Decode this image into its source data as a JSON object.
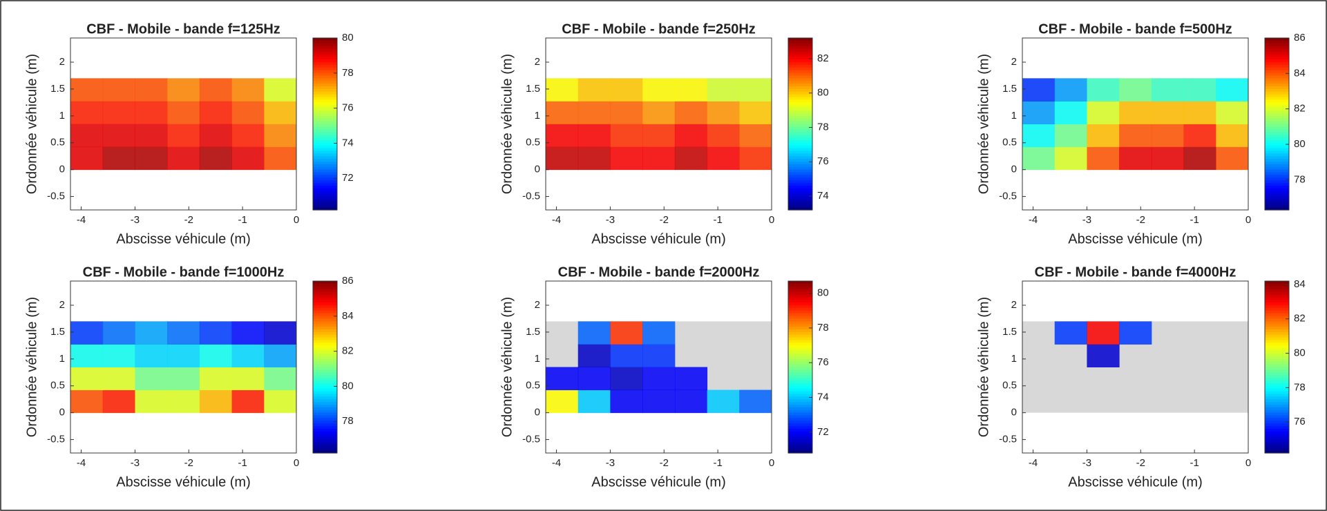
{
  "chart_data": [
    {
      "type": "heatmap",
      "title": "CBF - Mobile - bande f=125Hz",
      "xlabel": "Abscisse véhicule (m)",
      "ylabel": "Ordonnée véhicule (m)",
      "colormap": "jet",
      "x": [
        -3.9,
        -3.3,
        -2.7,
        -2.1,
        -1.5,
        -0.9,
        -0.3
      ],
      "y": [
        0.2125,
        0.6375,
        1.0625,
        1.4875
      ],
      "z": [
        [
          79,
          79.5,
          79.5,
          79,
          79.5,
          79,
          78
        ],
        [
          79,
          79,
          79,
          78.5,
          79,
          78.5,
          77.5
        ],
        [
          78.5,
          78.5,
          78.5,
          78,
          78.5,
          78,
          77
        ],
        [
          78,
          78,
          78,
          77.5,
          78,
          77.5,
          76
        ]
      ],
      "xlim": [
        -4.2,
        0
      ],
      "ylim": [
        -0.75,
        2.45
      ],
      "xticks": [
        -4,
        -3,
        -2,
        -1,
        0
      ],
      "yticks": [
        -0.5,
        0,
        0.5,
        1,
        1.5,
        2
      ],
      "clim": [
        70.2,
        80
      ],
      "cticks": [
        72,
        74,
        76,
        78,
        80
      ]
    },
    {
      "type": "heatmap",
      "title": "CBF - Mobile - bande f=250Hz",
      "xlabel": "Abscisse véhicule (m)",
      "ylabel": "Ordonnée véhicule (m)",
      "colormap": "jet",
      "x": [
        -3.9,
        -3.3,
        -2.7,
        -2.1,
        -1.5,
        -0.9,
        -0.3
      ],
      "y": [
        0.2125,
        0.6375,
        1.0625,
        1.4875
      ],
      "z": [
        [
          82.5,
          82.5,
          82,
          82,
          82.5,
          82,
          81.5
        ],
        [
          82,
          82,
          81.5,
          81.5,
          82,
          81.5,
          81
        ],
        [
          81,
          81,
          81,
          80.5,
          81,
          80.5,
          80
        ],
        [
          79.5,
          80,
          80,
          79.5,
          79.5,
          79,
          79
        ]
      ],
      "xlim": [
        -4.2,
        0
      ],
      "ylim": [
        -0.75,
        2.45
      ],
      "xticks": [
        -4,
        -3,
        -2,
        -1,
        0
      ],
      "yticks": [
        -0.5,
        0,
        0.5,
        1,
        1.5,
        2
      ],
      "clim": [
        73.2,
        83.2
      ],
      "cticks": [
        74,
        76,
        78,
        80,
        82
      ]
    },
    {
      "type": "heatmap",
      "title": "CBF - Mobile - bande f=500Hz",
      "xlabel": "Abscisse véhicule (m)",
      "ylabel": "Ordonnée véhicule (m)",
      "colormap": "jet",
      "x": [
        -3.9,
        -3.3,
        -2.7,
        -2.1,
        -1.5,
        -0.9,
        -0.3
      ],
      "y": [
        0.2125,
        0.6375,
        1.0625,
        1.4875
      ],
      "z": [
        [
          81,
          82,
          84,
          85,
          85,
          85.5,
          84
        ],
        [
          80,
          81,
          83,
          84,
          84,
          84.5,
          83
        ],
        [
          79,
          80,
          82,
          83,
          83,
          83,
          82
        ],
        [
          78,
          79,
          80.5,
          81,
          80.5,
          80.5,
          80
        ]
      ],
      "xlim": [
        -4.2,
        0
      ],
      "ylim": [
        -0.75,
        2.45
      ],
      "xticks": [
        -4,
        -3,
        -2,
        -1,
        0
      ],
      "yticks": [
        -0.5,
        0,
        0.5,
        1,
        1.5,
        2
      ],
      "clim": [
        76.3,
        86
      ],
      "cticks": [
        78,
        80,
        82,
        84,
        86
      ]
    },
    {
      "type": "heatmap",
      "title": "CBF - Mobile - bande f=1000Hz",
      "xlabel": "Abscisse véhicule (m)",
      "ylabel": "Ordonnée véhicule (m)",
      "colormap": "jet",
      "x": [
        -3.9,
        -3.3,
        -2.7,
        -2.1,
        -1.5,
        -0.9,
        -0.3
      ],
      "y": [
        0.2125,
        0.6375,
        1.0625,
        1.4875
      ],
      "z": [
        [
          84,
          84.5,
          82,
          82,
          83,
          84.5,
          82
        ],
        [
          82,
          82,
          81,
          81,
          82,
          82,
          81
        ],
        [
          80,
          80,
          79.5,
          79.5,
          80,
          79.5,
          79
        ],
        [
          78,
          78.5,
          79,
          78.5,
          78,
          77.5,
          77
        ]
      ],
      "xlim": [
        -4.2,
        0
      ],
      "ylim": [
        -0.75,
        2.45
      ],
      "xticks": [
        -4,
        -3,
        -2,
        -1,
        0
      ],
      "yticks": [
        -0.5,
        0,
        0.5,
        1,
        1.5,
        2
      ],
      "clim": [
        76.2,
        86
      ],
      "cticks": [
        78,
        80,
        82,
        84,
        86
      ]
    },
    {
      "type": "heatmap",
      "title": "CBF - Mobile - bande f=2000Hz",
      "xlabel": "Abscisse véhicule (m)",
      "ylabel": "Ordonnée véhicule (m)",
      "colormap": "jet",
      "x": [
        -3.9,
        -3.3,
        -2.7,
        -2.1,
        -1.5,
        -0.9,
        -0.3
      ],
      "y": [
        0.2125,
        0.6375,
        1.0625,
        1.4875
      ],
      "z": [
        [
          77,
          74,
          72,
          72,
          72,
          74,
          73
        ],
        [
          72,
          72,
          71.5,
          72,
          72,
          null,
          null
        ],
        [
          null,
          71.5,
          72.5,
          72.5,
          null,
          null,
          null
        ],
        [
          null,
          73,
          79,
          73,
          null,
          null,
          null
        ]
      ],
      "xlim": [
        -4.2,
        0
      ],
      "ylim": [
        -0.75,
        2.45
      ],
      "xticks": [
        -4,
        -3,
        -2,
        -1,
        0
      ],
      "yticks": [
        -0.5,
        0,
        0.5,
        1,
        1.5,
        2
      ],
      "clim": [
        70.8,
        80.7
      ],
      "cticks": [
        72,
        74,
        76,
        78,
        80
      ]
    },
    {
      "type": "heatmap",
      "title": "CBF - Mobile - bande f=4000Hz",
      "xlabel": "Abscisse véhicule (m)",
      "ylabel": "Ordonnée véhicule (m)",
      "colormap": "jet",
      "x": [
        -3.9,
        -3.3,
        -2.7,
        -2.1,
        -1.5,
        -0.9,
        -0.3
      ],
      "y": [
        0.2125,
        0.6375,
        1.0625,
        1.4875
      ],
      "z": [
        [
          null,
          null,
          null,
          null,
          null,
          null,
          null
        ],
        [
          null,
          null,
          null,
          null,
          null,
          null,
          null
        ],
        [
          null,
          null,
          75,
          null,
          null,
          null,
          null
        ],
        [
          null,
          76,
          83,
          76,
          null,
          null,
          null
        ]
      ],
      "xlim": [
        -4.2,
        0
      ],
      "ylim": [
        -0.75,
        2.45
      ],
      "xticks": [
        -4,
        -3,
        -2,
        -1,
        0
      ],
      "yticks": [
        -0.5,
        0,
        0.5,
        1,
        1.5,
        2
      ],
      "clim": [
        74.2,
        84.2
      ],
      "cticks": [
        76,
        78,
        80,
        82,
        84
      ]
    }
  ]
}
